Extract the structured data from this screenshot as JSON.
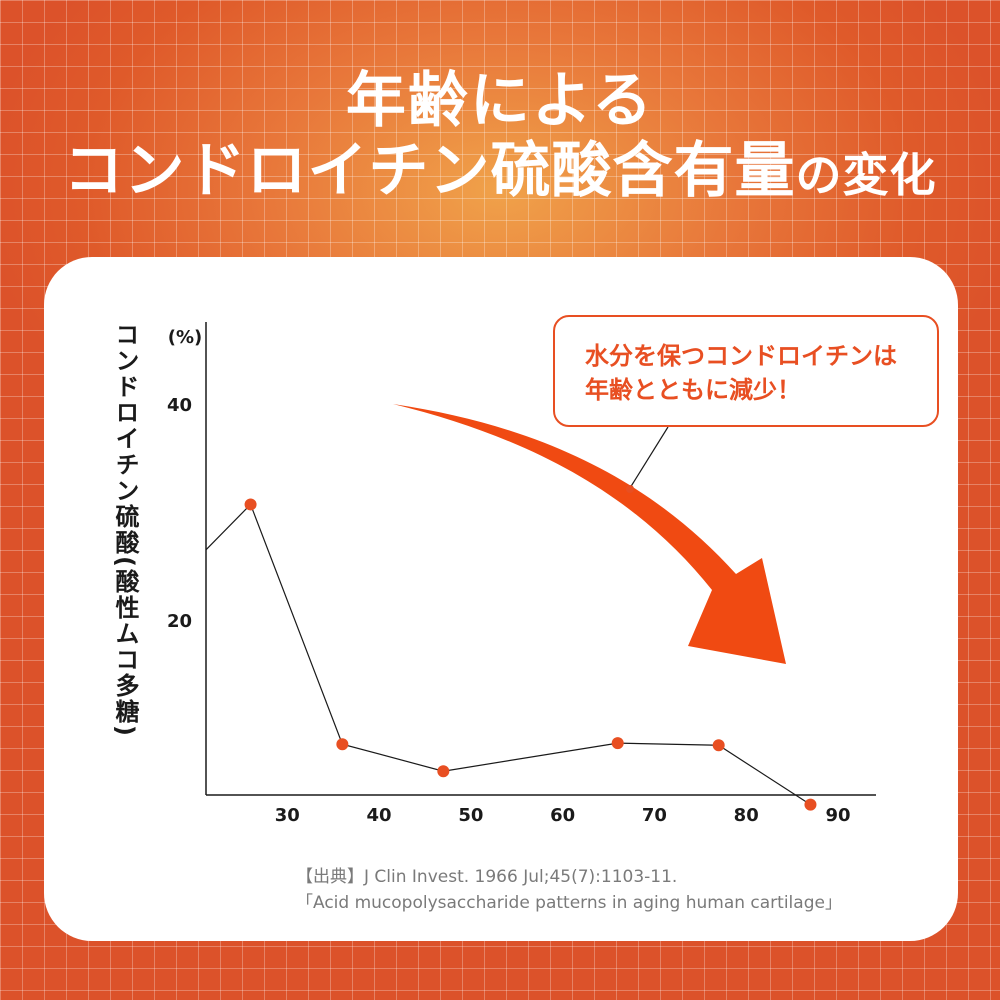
{
  "title": {
    "line1": "年齢による",
    "line2_main": "コンドロイチン硫酸含有量",
    "line2_tail": "の変化"
  },
  "callout": {
    "line1": "水分を保つコンドロイチンは",
    "line2": "年齢とともに減少！"
  },
  "source": {
    "line1": "【出典】J Clin Invest. 1966 Jul;45(7):1103-11.",
    "line2": "「Acid mucopolysaccharide patterns in aging human cartilage」"
  },
  "colors": {
    "accent": "#e84f22",
    "point": "#e84f22",
    "line": "#1a1a1a"
  },
  "chart_data": {
    "type": "line",
    "ylabel": "コンドロイチン硫酸(酸性ムコ多糖)",
    "yunit": "(%)",
    "xlim": [
      20,
      95
    ],
    "ylim": [
      0,
      43
    ],
    "xticks": [
      30,
      40,
      50,
      60,
      70,
      80,
      90
    ],
    "yticks": [
      20,
      40
    ],
    "series": [
      {
        "x": [
          26,
          36,
          47,
          66,
          77,
          87
        ],
        "y": [
          30.7,
          8.5,
          6.0,
          8.6,
          8.4,
          2.9
        ]
      }
    ],
    "line_start": {
      "x": 20,
      "y": 26.5
    }
  }
}
